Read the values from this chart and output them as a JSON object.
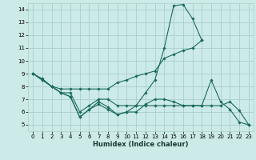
{
  "bg_color": "#cceae7",
  "grid_color": "#aacfcc",
  "line_color": "#1a6b5e",
  "xlabel": "Humidex (Indice chaleur)",
  "xlim": [
    -0.5,
    23.5
  ],
  "ylim": [
    4.5,
    14.5
  ],
  "xticks": [
    0,
    1,
    2,
    3,
    4,
    5,
    6,
    7,
    8,
    9,
    10,
    11,
    12,
    13,
    14,
    15,
    16,
    17,
    18,
    19,
    20,
    21,
    22,
    23
  ],
  "yticks": [
    5,
    6,
    7,
    8,
    9,
    10,
    11,
    12,
    13,
    14
  ],
  "lines": [
    {
      "x": [
        0,
        1,
        2,
        3,
        4,
        5,
        6,
        7,
        8,
        9,
        10,
        11,
        12,
        13,
        14,
        15,
        16,
        17,
        18
      ],
      "y": [
        9,
        8.5,
        8,
        7.5,
        7.2,
        5.6,
        6.2,
        6.6,
        6.2,
        5.8,
        6.0,
        6.5,
        7.5,
        8.5,
        11.0,
        14.3,
        14.4,
        13.3,
        11.6
      ]
    },
    {
      "x": [
        0,
        1,
        2,
        3,
        4,
        5,
        6,
        7,
        8,
        9,
        10,
        11,
        12,
        13,
        14,
        15,
        16,
        17,
        18
      ],
      "y": [
        9,
        8.6,
        8.0,
        7.8,
        7.8,
        7.8,
        7.8,
        7.8,
        7.8,
        8.3,
        8.5,
        8.8,
        9.0,
        9.2,
        10.2,
        10.5,
        10.8,
        11.0,
        11.6
      ]
    },
    {
      "x": [
        0,
        1,
        2,
        3,
        4,
        5,
        6,
        7,
        8,
        9,
        10,
        11,
        12,
        13,
        14,
        15,
        16,
        17,
        18,
        19,
        20,
        21,
        22,
        23
      ],
      "y": [
        9,
        8.5,
        8.0,
        7.5,
        7.5,
        6.0,
        6.5,
        7.0,
        7.0,
        6.5,
        6.5,
        6.5,
        6.5,
        6.5,
        6.5,
        6.5,
        6.5,
        6.5,
        6.5,
        8.5,
        6.8,
        6.2,
        5.2,
        5.0
      ]
    },
    {
      "x": [
        2,
        3,
        4,
        5,
        6,
        7,
        8,
        9,
        10,
        11,
        12,
        13,
        14,
        15,
        16,
        17,
        18,
        19,
        20,
        21,
        22,
        23
      ],
      "y": [
        8.0,
        7.5,
        7.2,
        5.6,
        6.2,
        6.8,
        6.4,
        5.8,
        6.0,
        6.0,
        6.6,
        7.0,
        7.0,
        6.8,
        6.5,
        6.5,
        6.5,
        6.5,
        6.5,
        6.8,
        6.1,
        5.0
      ]
    }
  ]
}
